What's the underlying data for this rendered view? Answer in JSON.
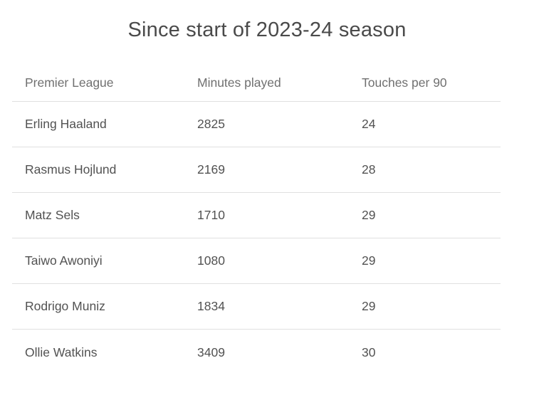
{
  "title": "Since start of 2023-24 season",
  "chart_data": {
    "type": "table",
    "title": "Since start of 2023-24 season",
    "columns": [
      "Premier League",
      "Minutes played",
      "Touches per 90"
    ],
    "rows": [
      [
        "Erling Haaland",
        2825,
        24
      ],
      [
        "Rasmus Hojlund",
        2169,
        28
      ],
      [
        "Matz Sels",
        1710,
        29
      ],
      [
        "Taiwo Awoniyi",
        1080,
        29
      ],
      [
        "Rodrigo Muniz",
        1834,
        29
      ],
      [
        "Ollie Watkins",
        3409,
        30
      ]
    ]
  },
  "colors": {
    "background": "#ffffff",
    "title_text": "#4a4a4a",
    "header_text": "#707070",
    "cell_text": "#525252",
    "divider": "#e0e0e0"
  }
}
